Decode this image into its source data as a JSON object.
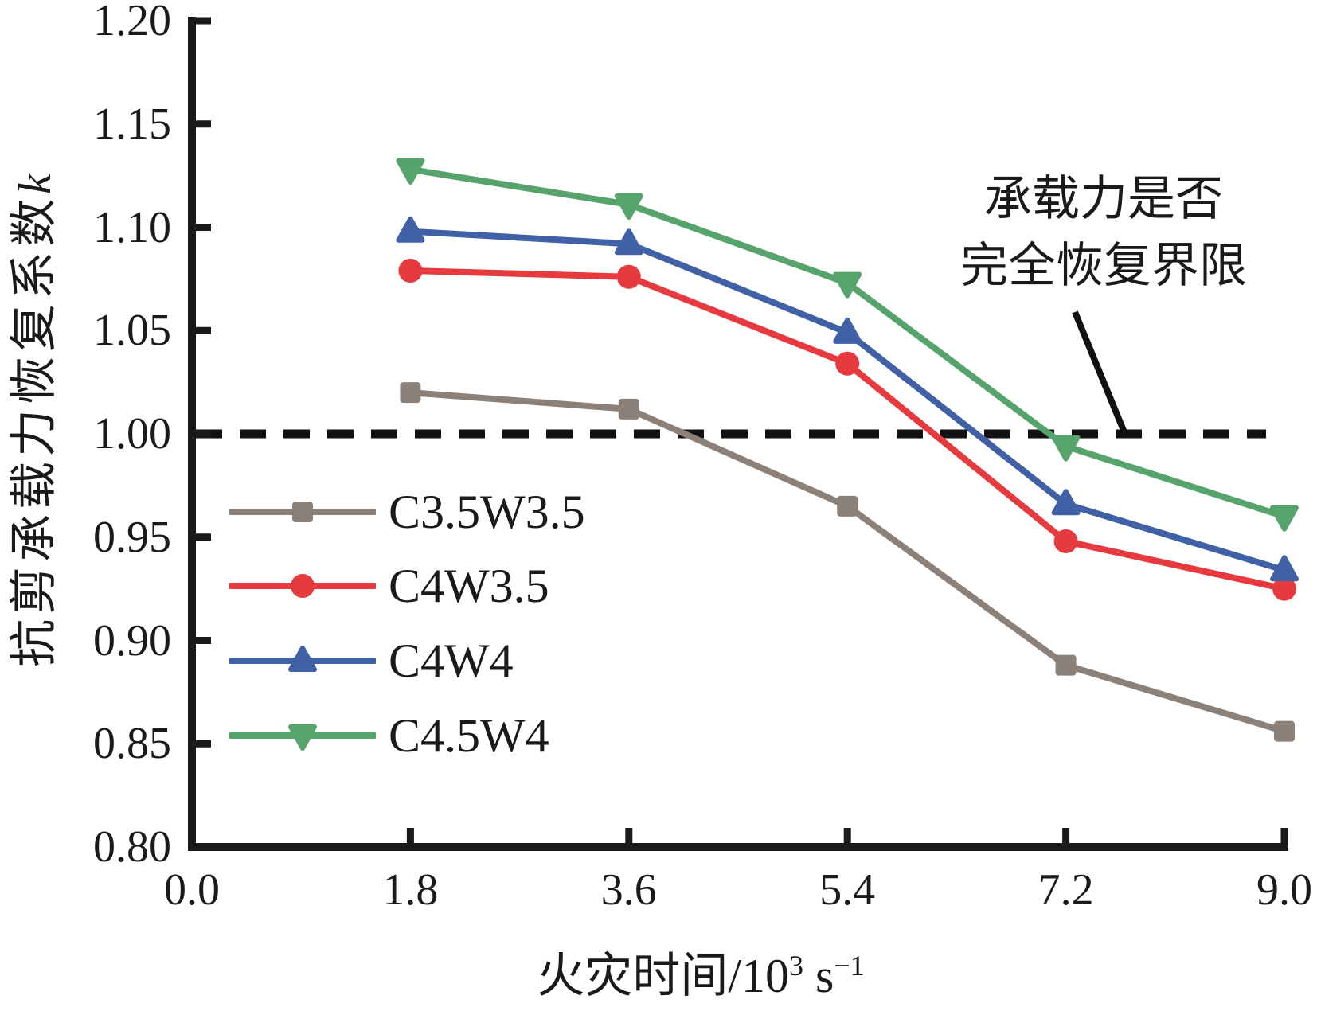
{
  "figure": {
    "background": "#ffffff",
    "axis_color": "#1a1a1a",
    "reference_color": "#111111"
  },
  "chart_data": {
    "type": "line",
    "x": [
      1.8,
      3.6,
      5.4,
      7.2,
      9.0
    ],
    "series": [
      {
        "name": "C3.5W3.5",
        "color": "#8c8178",
        "marker": "square",
        "values": [
          1.02,
          1.012,
          0.965,
          0.888,
          0.856
        ]
      },
      {
        "name": "C4W3.5",
        "color": "#e63a3f",
        "marker": "circle",
        "values": [
          1.079,
          1.076,
          1.034,
          0.948,
          0.925
        ]
      },
      {
        "name": "C4W4",
        "color": "#4061a5",
        "marker": "triangle-up",
        "values": [
          1.098,
          1.092,
          1.049,
          0.966,
          0.934
        ]
      },
      {
        "name": "C4.5W4",
        "color": "#57a36c",
        "marker": "triangle-down",
        "values": [
          1.128,
          1.111,
          1.073,
          0.994,
          0.96
        ]
      }
    ],
    "xticks": [
      "0.0",
      "1.8",
      "3.6",
      "5.4",
      "7.2",
      "9.0"
    ],
    "yticks": [
      "0.80",
      "0.85",
      "0.90",
      "0.95",
      "1.00",
      "1.05",
      "1.10",
      "1.15",
      "1.20"
    ],
    "xlim": [
      0.0,
      9.0
    ],
    "ylim": [
      0.8,
      1.2
    ],
    "grid": false,
    "legend_position": "inside-lower-left",
    "xlabel": "火灾时间/10³ s⁻¹",
    "xlabel_parts": {
      "prefix": "火灾时间/10",
      "sup1": "3",
      "mid": " s",
      "sup2": "−1"
    },
    "ylabel": "抗剪承载力恢复系数k",
    "ylabel_parts": {
      "text": "抗剪承载力恢复系数",
      "italic_suffix": "k"
    },
    "reference_line": {
      "y": 1.0,
      "style": "dashed"
    },
    "annotation": {
      "line1": "承载力是否",
      "line2": "完全恢复界限"
    }
  }
}
